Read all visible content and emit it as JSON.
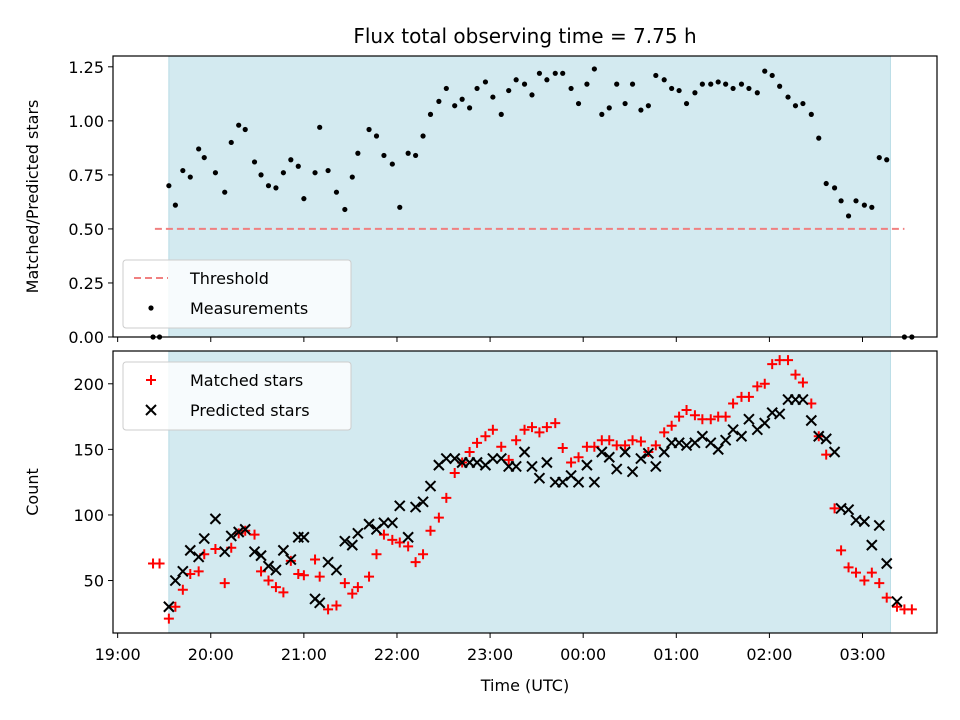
{
  "chart_data": [
    {
      "type": "scatter",
      "title": "Flux total observing time = 7.75 h",
      "xlabel": "",
      "ylabel": "Matched/Predicted stars",
      "xlim_hours": [
        18.95,
        27.8
      ],
      "ylim": [
        0,
        1.3
      ],
      "yticks": [
        "0.00",
        "0.25",
        "0.50",
        "0.75",
        "1.00",
        "1.25"
      ],
      "shade_span_hours": [
        19.55,
        27.3
      ],
      "shade_color": "#d3eaf0",
      "threshold": {
        "name": "Threshold",
        "value": 0.5,
        "x_range_hours": [
          19.4,
          27.45
        ],
        "color": "#f08080"
      },
      "legend": {
        "placement": "lower-left",
        "entries": [
          "Threshold",
          "Measurements"
        ]
      },
      "series": [
        {
          "name": "Measurements",
          "marker": "dot",
          "color": "#000000",
          "x_hours": [
            19.38,
            19.45,
            19.55,
            19.62,
            19.7,
            19.78,
            19.87,
            19.93,
            20.05,
            20.15,
            20.22,
            20.3,
            20.37,
            20.47,
            20.54,
            20.62,
            20.7,
            20.78,
            20.86,
            20.94,
            21.0,
            21.12,
            21.17,
            21.26,
            21.35,
            21.44,
            21.52,
            21.58,
            21.7,
            21.78,
            21.86,
            21.95,
            22.03,
            22.12,
            22.2,
            22.28,
            22.36,
            22.45,
            22.53,
            22.62,
            22.7,
            22.78,
            22.86,
            22.95,
            23.03,
            23.12,
            23.2,
            23.28,
            23.37,
            23.45,
            23.53,
            23.61,
            23.7,
            23.78,
            23.87,
            23.95,
            24.04,
            24.12,
            24.2,
            24.28,
            24.36,
            24.45,
            24.53,
            24.62,
            24.7,
            24.78,
            24.87,
            24.95,
            25.03,
            25.11,
            25.2,
            25.28,
            25.37,
            25.45,
            25.53,
            25.61,
            25.7,
            25.78,
            25.87,
            25.95,
            26.03,
            26.11,
            26.2,
            26.28,
            26.36,
            26.45,
            26.53,
            26.61,
            26.7,
            26.77,
            26.85,
            26.93,
            27.02,
            27.1,
            27.18,
            27.26,
            27.45,
            27.53
          ],
          "y": [
            0.0,
            0.0,
            0.7,
            0.61,
            0.77,
            0.74,
            0.87,
            0.83,
            0.76,
            0.67,
            0.9,
            0.98,
            0.96,
            0.81,
            0.75,
            0.7,
            0.69,
            0.76,
            0.82,
            0.79,
            0.64,
            0.76,
            0.97,
            0.77,
            0.67,
            0.59,
            0.74,
            0.85,
            0.96,
            0.93,
            0.84,
            0.8,
            0.6,
            0.85,
            0.84,
            0.93,
            1.03,
            1.09,
            1.15,
            1.07,
            1.1,
            1.06,
            1.15,
            1.18,
            1.11,
            1.03,
            1.14,
            1.19,
            1.17,
            1.12,
            1.22,
            1.19,
            1.22,
            1.22,
            1.15,
            1.08,
            1.17,
            1.24,
            1.03,
            1.06,
            1.17,
            1.08,
            1.17,
            1.05,
            1.07,
            1.21,
            1.19,
            1.15,
            1.14,
            1.08,
            1.13,
            1.17,
            1.17,
            1.18,
            1.17,
            1.15,
            1.17,
            1.15,
            1.13,
            1.23,
            1.21,
            1.16,
            1.11,
            1.07,
            1.08,
            1.03,
            0.92,
            0.71,
            0.69,
            0.63,
            0.56,
            0.63,
            0.61,
            0.6,
            0.83,
            0.82,
            0.0,
            0.0
          ]
        }
      ]
    },
    {
      "type": "scatter",
      "title": "",
      "xlabel": "Time (UTC)",
      "ylabel": "Count",
      "xlim_hours": [
        18.95,
        27.8
      ],
      "ylim": [
        10,
        225
      ],
      "yticks": [
        "50",
        "100",
        "150",
        "200"
      ],
      "xticks": [
        "19:00",
        "20:00",
        "21:00",
        "22:00",
        "23:00",
        "00:00",
        "01:00",
        "02:00",
        "03:00"
      ],
      "shade_span_hours": [
        19.55,
        27.3
      ],
      "legend": {
        "placement": "upper-left",
        "entries": [
          "Matched stars",
          "Predicted stars"
        ]
      },
      "series": [
        {
          "name": "Matched stars",
          "marker": "plus",
          "color": "#ff0000",
          "x_hours": [
            19.38,
            19.45,
            19.55,
            19.62,
            19.7,
            19.78,
            19.87,
            19.93,
            20.05,
            20.15,
            20.22,
            20.3,
            20.37,
            20.47,
            20.54,
            20.62,
            20.7,
            20.78,
            20.86,
            20.94,
            21.0,
            21.12,
            21.17,
            21.26,
            21.35,
            21.44,
            21.52,
            21.58,
            21.7,
            21.78,
            21.86,
            21.95,
            22.03,
            22.12,
            22.2,
            22.28,
            22.36,
            22.45,
            22.53,
            22.62,
            22.7,
            22.78,
            22.86,
            22.95,
            23.03,
            23.12,
            23.2,
            23.28,
            23.37,
            23.45,
            23.53,
            23.61,
            23.7,
            23.78,
            23.87,
            23.95,
            24.04,
            24.12,
            24.2,
            24.28,
            24.36,
            24.45,
            24.53,
            24.62,
            24.7,
            24.78,
            24.87,
            24.95,
            25.03,
            25.11,
            25.2,
            25.28,
            25.37,
            25.45,
            25.53,
            25.61,
            25.7,
            25.78,
            25.87,
            25.95,
            26.03,
            26.11,
            26.2,
            26.28,
            26.36,
            26.45,
            26.53,
            26.61,
            26.7,
            26.77,
            26.85,
            26.93,
            27.02,
            27.1,
            27.18,
            27.26,
            27.37,
            27.45,
            27.53
          ],
          "y": [
            63,
            63,
            21,
            30,
            43,
            55,
            57,
            70,
            74,
            48,
            75,
            86,
            88,
            85,
            57,
            50,
            45,
            41,
            65,
            55,
            54,
            66,
            53,
            28,
            31,
            48,
            40,
            45,
            53,
            70,
            85,
            81,
            79,
            76,
            64,
            70,
            88,
            98,
            113,
            132,
            140,
            148,
            155,
            160,
            165,
            152,
            142,
            157,
            165,
            167,
            163,
            167,
            170,
            151,
            140,
            144,
            152,
            152,
            157,
            157,
            153,
            153,
            157,
            156,
            148,
            153,
            163,
            168,
            175,
            180,
            176,
            173,
            173,
            175,
            175,
            185,
            190,
            190,
            198,
            200,
            215,
            218,
            218,
            207,
            201,
            185,
            160,
            146,
            105,
            73,
            60,
            56,
            50,
            56,
            48,
            37,
            30,
            28,
            28
          ]
        },
        {
          "name": "Predicted stars",
          "marker": "x",
          "color": "#000000",
          "x_hours": [
            19.55,
            19.62,
            19.7,
            19.78,
            19.87,
            19.93,
            20.05,
            20.15,
            20.22,
            20.3,
            20.37,
            20.47,
            20.54,
            20.62,
            20.7,
            20.78,
            20.86,
            20.94,
            21.0,
            21.12,
            21.17,
            21.26,
            21.35,
            21.44,
            21.52,
            21.58,
            21.7,
            21.78,
            21.86,
            21.95,
            22.03,
            22.12,
            22.2,
            22.28,
            22.36,
            22.45,
            22.53,
            22.62,
            22.7,
            22.78,
            22.86,
            22.95,
            23.03,
            23.12,
            23.2,
            23.28,
            23.37,
            23.45,
            23.53,
            23.61,
            23.7,
            23.78,
            23.87,
            23.95,
            24.04,
            24.12,
            24.2,
            24.28,
            24.36,
            24.45,
            24.53,
            24.62,
            24.7,
            24.78,
            24.87,
            24.95,
            25.03,
            25.11,
            25.2,
            25.28,
            25.37,
            25.45,
            25.53,
            25.61,
            25.7,
            25.78,
            25.87,
            25.95,
            26.03,
            26.11,
            26.2,
            26.28,
            26.36,
            26.45,
            26.53,
            26.61,
            26.7,
            26.77,
            26.85,
            26.93,
            27.02,
            27.1,
            27.18,
            27.26,
            27.37
          ],
          "y": [
            30,
            50,
            57,
            73,
            68,
            82,
            97,
            72,
            84,
            87,
            89,
            72,
            69,
            61,
            58,
            73,
            66,
            83,
            83,
            36,
            33,
            64,
            58,
            80,
            77,
            86,
            93,
            89,
            94,
            94,
            107,
            83,
            106,
            110,
            122,
            138,
            143,
            143,
            140,
            140,
            140,
            138,
            143,
            143,
            137,
            137,
            148,
            137,
            128,
            140,
            125,
            125,
            130,
            125,
            138,
            125,
            148,
            144,
            135,
            148,
            133,
            143,
            147,
            137,
            148,
            155,
            155,
            153,
            155,
            160,
            155,
            150,
            157,
            165,
            160,
            173,
            165,
            170,
            178,
            177,
            188,
            188,
            188,
            172,
            160,
            158,
            148,
            105,
            104,
            96,
            95,
            77,
            92,
            63,
            34
          ]
        }
      ]
    }
  ]
}
